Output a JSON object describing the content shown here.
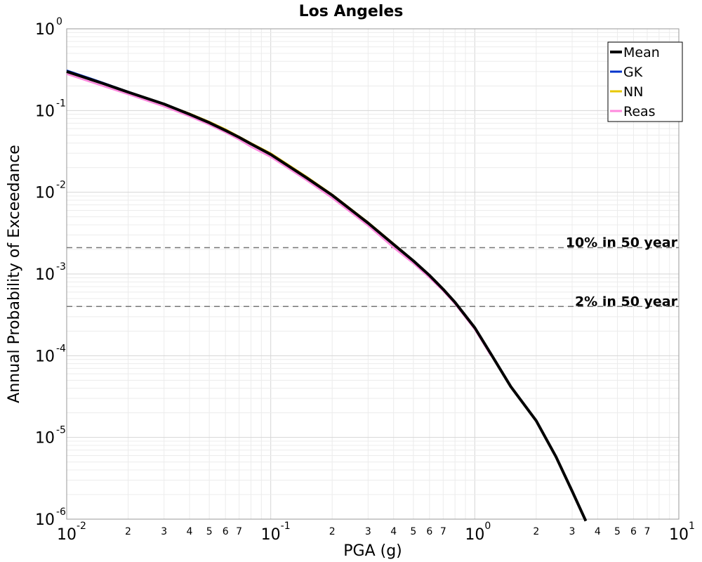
{
  "chart_data": {
    "type": "line",
    "title": "Los Angeles",
    "xlabel": "PGA (g)",
    "ylabel": "Annual Probability of Exceedance",
    "x_scale": "log",
    "y_scale": "log",
    "xlim": [
      0.01,
      10
    ],
    "ylim": [
      1e-06,
      1
    ],
    "grid": true,
    "legend_position": "top-right",
    "x_major_ticks": [
      {
        "base": "10",
        "exp": "-2",
        "value": 0.01
      },
      {
        "base": "10",
        "exp": "-1",
        "value": 0.1
      },
      {
        "base": "10",
        "exp": "0",
        "value": 1
      },
      {
        "base": "10",
        "exp": "1",
        "value": 10
      }
    ],
    "x_minor_tick_labels": [
      "2",
      "3",
      "4",
      "5",
      "6",
      "7"
    ],
    "y_major_ticks": [
      {
        "base": "10",
        "exp": "0",
        "value": 1
      },
      {
        "base": "10",
        "exp": "-1",
        "value": 0.1
      },
      {
        "base": "10",
        "exp": "-2",
        "value": 0.01
      },
      {
        "base": "10",
        "exp": "-3",
        "value": 0.001
      },
      {
        "base": "10",
        "exp": "-4",
        "value": 0.0001
      },
      {
        "base": "10",
        "exp": "-5",
        "value": 1e-05
      },
      {
        "base": "10",
        "exp": "-6",
        "value": 1e-06
      }
    ],
    "reference_lines": [
      {
        "label": "10% in 50 year",
        "y": 0.0021,
        "color": "#777777"
      },
      {
        "label": "2% in 50 year",
        "y": 0.0004,
        "color": "#777777"
      }
    ],
    "series": [
      {
        "name": "GK",
        "color": "#0033cc",
        "x": [
          0.01,
          0.015,
          0.02,
          0.03,
          0.04,
          0.05,
          0.06,
          0.07,
          0.08,
          0.1,
          0.15,
          0.2,
          0.3,
          0.4,
          0.5,
          0.6,
          0.7,
          0.8,
          1.0,
          1.2
        ],
        "y": [
          0.31,
          0.22,
          0.17,
          0.12,
          0.09,
          0.071,
          0.057,
          0.047,
          0.039,
          0.029,
          0.015,
          0.0092,
          0.0042,
          0.0023,
          0.00145,
          0.00096,
          0.00065,
          0.00045,
          0.00022,
          0.000105
        ]
      },
      {
        "name": "NN",
        "color": "#e8c800",
        "x": [
          0.01,
          0.015,
          0.02,
          0.03,
          0.04,
          0.05,
          0.06,
          0.07,
          0.08,
          0.1,
          0.15,
          0.2,
          0.3,
          0.4,
          0.5,
          0.6,
          0.7,
          0.8,
          1.0,
          1.2
        ],
        "y": [
          0.3,
          0.215,
          0.168,
          0.12,
          0.092,
          0.073,
          0.059,
          0.048,
          0.04,
          0.03,
          0.0155,
          0.0094,
          0.0043,
          0.00235,
          0.00147,
          0.00097,
          0.00066,
          0.00045,
          0.00022,
          0.000105
        ]
      },
      {
        "name": "Reas",
        "color": "#ff88dd",
        "x": [
          0.01,
          0.015,
          0.02,
          0.03,
          0.04,
          0.05,
          0.06,
          0.07,
          0.08,
          0.1,
          0.15,
          0.2,
          0.3,
          0.4,
          0.5,
          0.6,
          0.7,
          0.8,
          1.0,
          1.2
        ],
        "y": [
          0.28,
          0.2,
          0.158,
          0.112,
          0.085,
          0.067,
          0.054,
          0.044,
          0.036,
          0.027,
          0.014,
          0.0085,
          0.0039,
          0.0021,
          0.00135,
          0.0009,
          0.00062,
          0.00043,
          0.00021,
          0.0001
        ]
      },
      {
        "name": "Mean",
        "color": "#000000",
        "x": [
          0.01,
          0.015,
          0.02,
          0.03,
          0.04,
          0.05,
          0.06,
          0.07,
          0.08,
          0.1,
          0.15,
          0.2,
          0.3,
          0.4,
          0.5,
          0.6,
          0.7,
          0.8,
          1.0,
          1.2,
          1.5,
          2.0,
          2.5,
          3.0,
          3.5
        ],
        "y": [
          0.3,
          0.215,
          0.168,
          0.12,
          0.09,
          0.071,
          0.057,
          0.047,
          0.039,
          0.029,
          0.015,
          0.0092,
          0.0042,
          0.0023,
          0.00145,
          0.00096,
          0.00065,
          0.00045,
          0.00022,
          0.000105,
          4.2e-05,
          1.6e-05,
          5.8e-06,
          2.2e-06,
          9.5e-07
        ]
      }
    ],
    "legend_order": [
      "Mean",
      "GK",
      "NN",
      "Reas"
    ]
  }
}
